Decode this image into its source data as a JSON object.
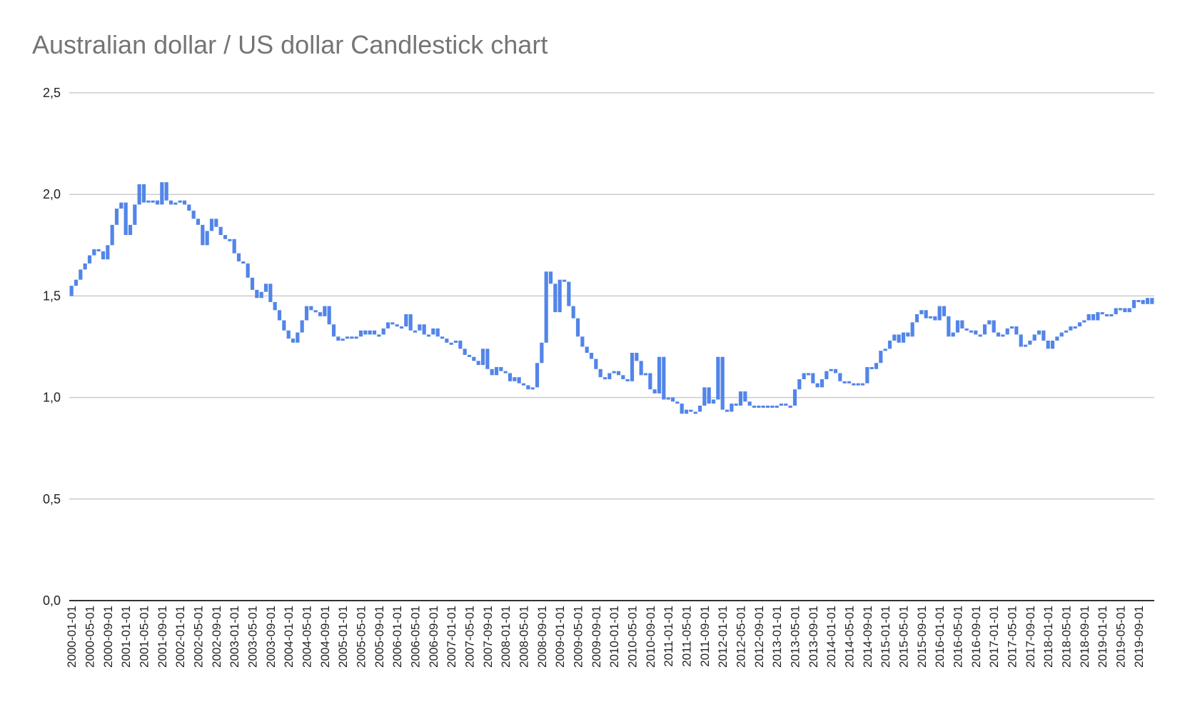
{
  "chart_data": {
    "type": "candlestick",
    "title": "Australian dollar / US dollar Candlestick chart",
    "xlabel": "",
    "ylabel": "",
    "ylim": [
      0,
      2.5
    ],
    "y_ticks": [
      "0,0",
      "0,5",
      "1,0",
      "1,5",
      "2,0",
      "2,5"
    ],
    "y_tick_values": [
      0,
      0.5,
      1.0,
      1.5,
      2.0,
      2.5
    ],
    "grid": true,
    "legend": "none",
    "color": "#5285e8",
    "start_month": "2000-01-01",
    "x_tick_every_months": 4,
    "first_open": 1.5,
    "close": [
      1.55,
      1.58,
      1.63,
      1.66,
      1.7,
      1.73,
      1.72,
      1.68,
      1.75,
      1.85,
      1.93,
      1.96,
      1.8,
      1.85,
      1.95,
      2.05,
      1.96,
      1.97,
      1.97,
      1.95,
      2.06,
      1.97,
      1.95,
      1.96,
      1.97,
      1.95,
      1.92,
      1.88,
      1.85,
      1.75,
      1.82,
      1.88,
      1.84,
      1.8,
      1.78,
      1.78,
      1.71,
      1.67,
      1.66,
      1.59,
      1.53,
      1.49,
      1.52,
      1.56,
      1.47,
      1.43,
      1.38,
      1.33,
      1.29,
      1.27,
      1.32,
      1.38,
      1.45,
      1.43,
      1.42,
      1.4,
      1.45,
      1.36,
      1.3,
      1.28,
      1.29,
      1.3,
      1.29,
      1.3,
      1.33,
      1.31,
      1.33,
      1.31,
      1.31,
      1.34,
      1.37,
      1.36,
      1.35,
      1.35,
      1.41,
      1.33,
      1.33,
      1.36,
      1.31,
      1.31,
      1.34,
      1.3,
      1.29,
      1.27,
      1.27,
      1.28,
      1.24,
      1.21,
      1.2,
      1.18,
      1.16,
      1.24,
      1.14,
      1.11,
      1.15,
      1.13,
      1.12,
      1.08,
      1.1,
      1.07,
      1.06,
      1.04,
      1.05,
      1.17,
      1.27,
      1.62,
      1.56,
      1.42,
      1.58,
      1.57,
      1.45,
      1.39,
      1.3,
      1.25,
      1.22,
      1.19,
      1.14,
      1.1,
      1.09,
      1.12,
      1.13,
      1.11,
      1.09,
      1.08,
      1.22,
      1.18,
      1.11,
      1.12,
      1.04,
      1.02,
      1.2,
      0.99,
      1.0,
      0.98,
      0.97,
      0.92,
      0.94,
      0.93,
      0.93,
      0.96,
      1.05,
      0.97,
      0.99,
      1.2,
      0.94,
      0.93,
      0.97,
      0.96,
      1.03,
      0.98,
      0.96,
      0.95,
      0.96,
      0.96,
      0.96,
      0.96,
      0.96,
      0.97,
      0.96,
      0.96,
      1.04,
      1.09,
      1.12,
      1.12,
      1.07,
      1.05,
      1.09,
      1.13,
      1.14,
      1.12,
      1.08,
      1.08,
      1.07,
      1.07,
      1.07,
      1.07,
      1.15,
      1.14,
      1.17,
      1.23,
      1.24,
      1.28,
      1.31,
      1.27,
      1.32,
      1.3,
      1.37,
      1.41,
      1.43,
      1.39,
      1.4,
      1.38,
      1.45,
      1.4,
      1.3,
      1.32,
      1.38,
      1.34,
      1.33,
      1.33,
      1.31,
      1.31,
      1.36,
      1.38,
      1.32,
      1.3,
      1.31,
      1.34,
      1.35,
      1.31,
      1.25,
      1.26,
      1.28,
      1.31,
      1.33,
      1.28,
      1.24,
      1.28,
      1.3,
      1.32,
      1.33,
      1.35,
      1.35,
      1.37,
      1.38,
      1.41,
      1.38,
      1.42,
      1.41,
      1.41,
      1.41,
      1.44,
      1.44,
      1.42,
      1.44,
      1.48,
      1.48,
      1.46,
      1.49,
      1.46
    ]
  }
}
